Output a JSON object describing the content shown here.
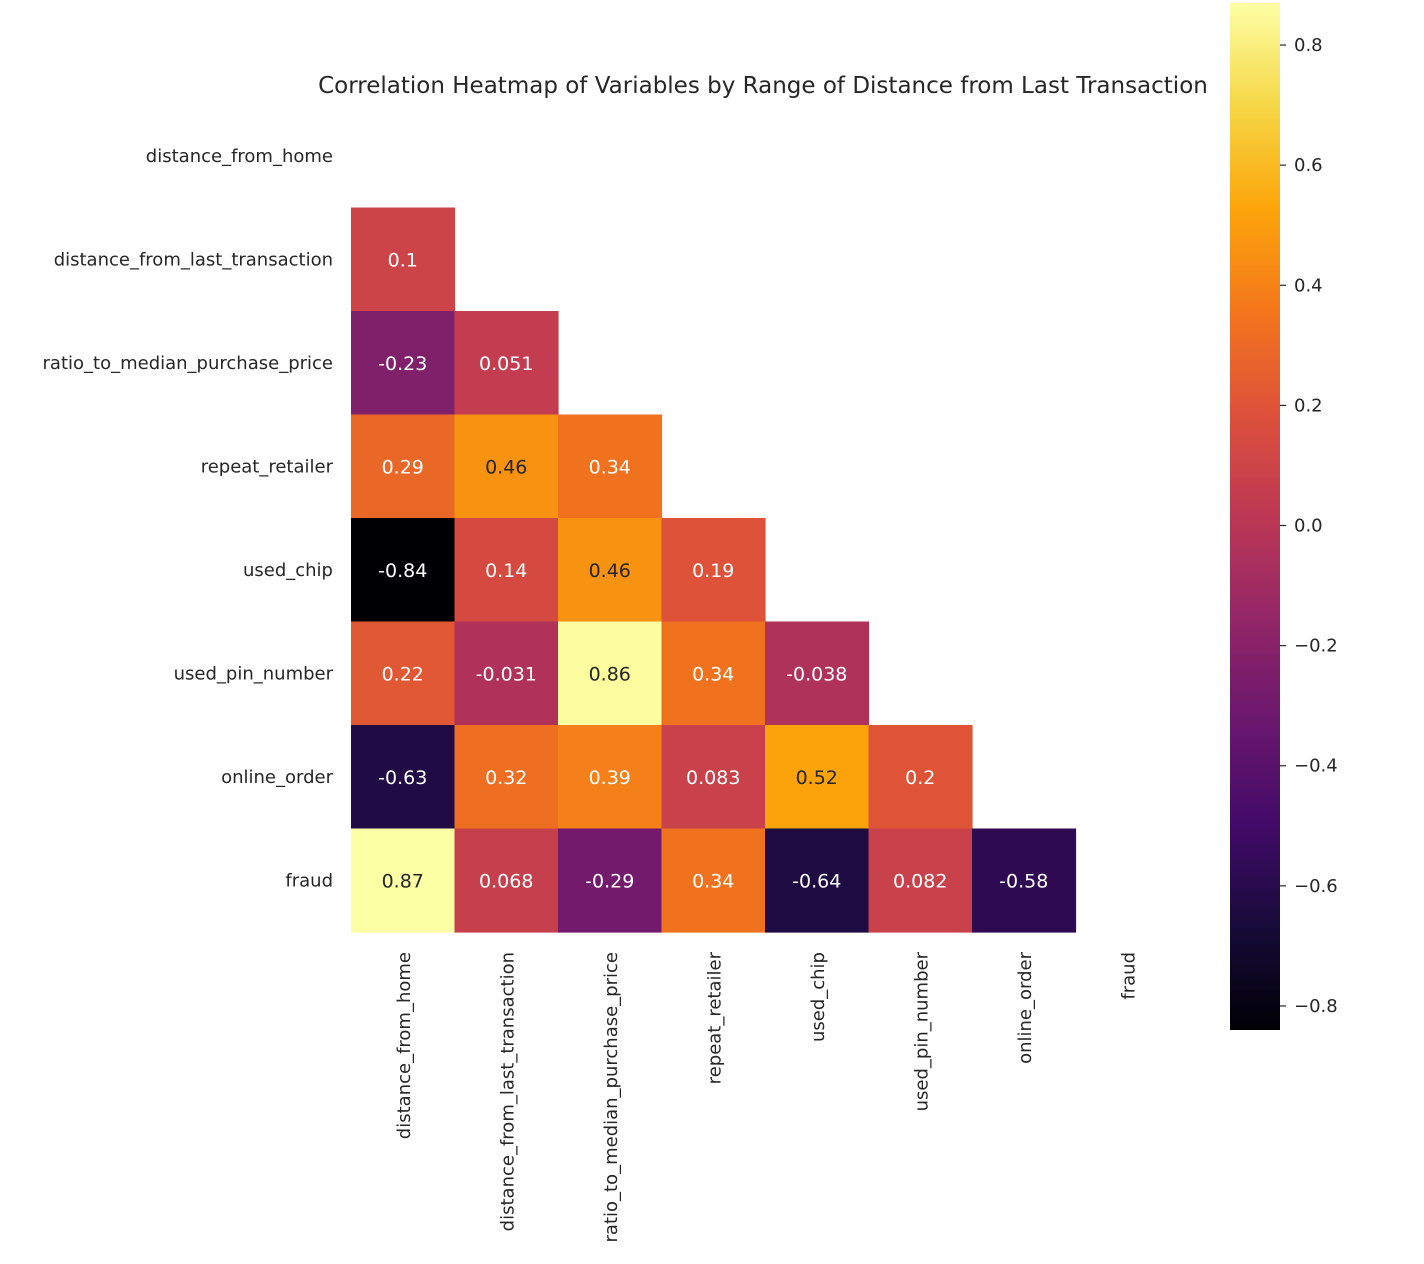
{
  "chart_data": {
    "type": "heatmap",
    "title": "Correlation Heatmap of Variables by Range of Distance from Last Transaction",
    "variables": [
      "distance_from_home",
      "distance_from_last_transaction",
      "ratio_to_median_purchase_price",
      "repeat_retailer",
      "used_chip",
      "used_pin_number",
      "online_order",
      "fraud"
    ],
    "mask": "upper-triangle-including-diagonal",
    "lower_triangle": [
      [],
      [
        0.1
      ],
      [
        -0.23,
        0.051
      ],
      [
        0.29,
        0.46,
        0.34
      ],
      [
        -0.84,
        0.14,
        0.46,
        0.19
      ],
      [
        0.22,
        -0.031,
        0.86,
        0.34,
        -0.038
      ],
      [
        -0.63,
        0.32,
        0.39,
        0.083,
        0.52,
        0.2
      ],
      [
        0.87,
        0.068,
        -0.29,
        0.34,
        -0.64,
        0.082,
        -0.58
      ]
    ],
    "colormap": "inferno",
    "vmin": -0.84,
    "vmax": 0.87,
    "colorbar_ticks": [
      "0.8",
      "0.6",
      "0.4",
      "0.2",
      "0.0",
      "−0.2",
      "−0.4",
      "−0.6",
      "−0.8"
    ],
    "colorbar_tick_values": [
      0.8,
      0.6,
      0.4,
      0.2,
      0.0,
      -0.2,
      -0.4,
      -0.6,
      -0.8
    ],
    "text_color_dark": "#262626",
    "text_color_light": "#ffffff"
  }
}
